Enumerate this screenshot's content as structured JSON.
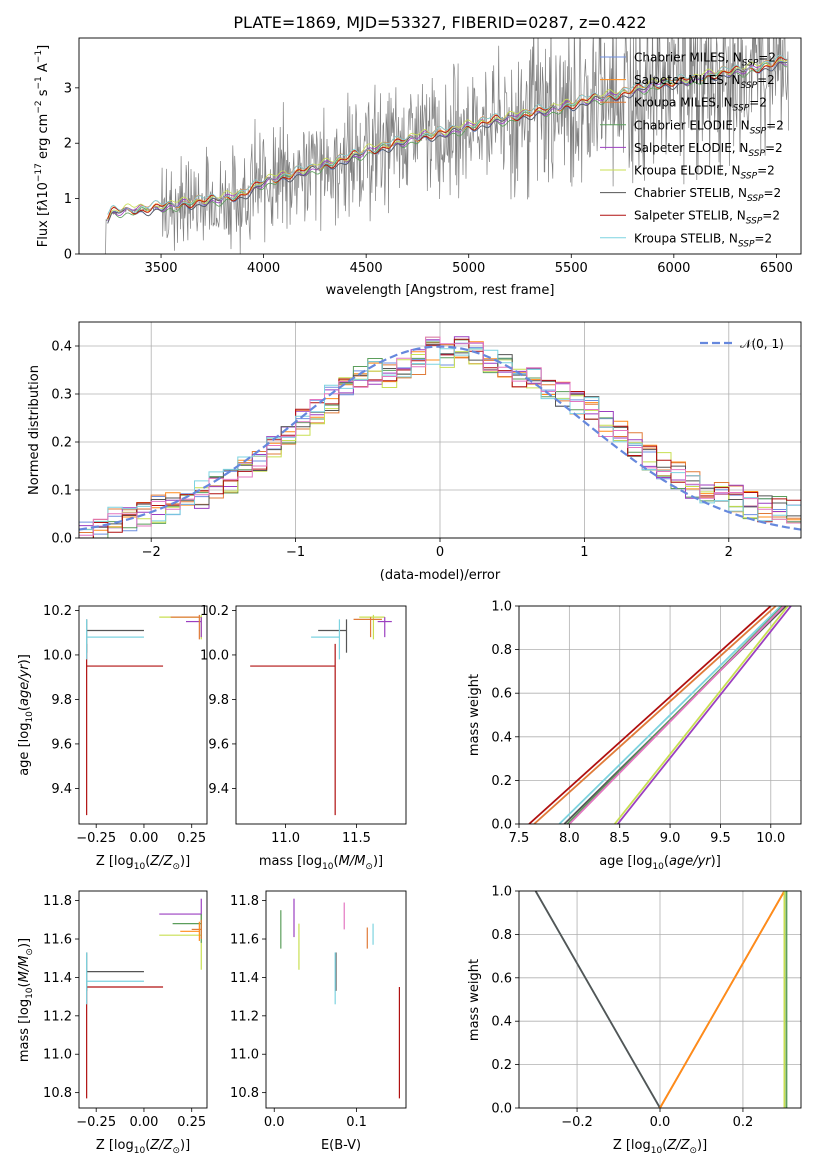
{
  "colors": {
    "chabrier_miles": "#6f8fe0",
    "salpeter_miles": "#ff8c1a",
    "kroupa_miles": "#e07b39",
    "chabrier_elodie": "#5b9e5b",
    "salpeter_elodie": "#9b3fc0",
    "kroupa_elodie": "#c8df52",
    "chabrier_stelib": "#555555",
    "salpeter_stelib": "#b01010",
    "kroupa_stelib": "#7dd3e0",
    "pink": "#e377c2",
    "data": "#808080",
    "gauss": "#6688dd"
  },
  "chart_data": [
    {
      "id": "spectrum",
      "type": "line",
      "title": "PLATE=1869, MJD=53327, FIBERID=0287, z=0.422",
      "xlabel": "wavelength [Angstrom, rest frame]",
      "ylabel_parts": [
        "Flux [f",
        "λ",
        "10",
        "−17",
        " erg cm",
        "−2",
        " s",
        "−1",
        " A",
        "−1",
        "]"
      ],
      "xlim": [
        3100,
        6620
      ],
      "ylim": [
        0,
        3.9
      ],
      "xticks": [
        3500,
        4000,
        4500,
        5000,
        5500,
        6000,
        6500
      ],
      "yticks": [
        0,
        1,
        2,
        3
      ],
      "model_trend": {
        "x": [
          3220,
          3260,
          3300,
          3400,
          3500,
          3600,
          3700,
          3800,
          3900,
          4000,
          4100,
          4200,
          4300,
          4400,
          4500,
          4600,
          4700,
          4800,
          4900,
          5000,
          5100,
          5200,
          5300,
          5400,
          5500,
          5600,
          5700,
          5800,
          5900,
          6000,
          6100,
          6200,
          6300,
          6400,
          6500,
          6550
        ],
        "y": [
          0.55,
          0.75,
          0.78,
          0.8,
          0.85,
          0.9,
          0.95,
          1.0,
          1.08,
          1.3,
          1.4,
          1.5,
          1.6,
          1.72,
          1.85,
          1.95,
          2.05,
          2.15,
          2.2,
          2.3,
          2.4,
          2.45,
          2.55,
          2.6,
          2.7,
          2.8,
          2.85,
          2.95,
          3.05,
          3.1,
          3.15,
          3.25,
          3.3,
          3.35,
          3.45,
          3.5
        ]
      },
      "legend": [
        {
          "name": "Chabrier MILES, N",
          "sub": "SSP",
          "suffix": "=2",
          "color": "chabrier_miles"
        },
        {
          "name": "Salpeter MILES, N",
          "sub": "SSP",
          "suffix": "=2",
          "color": "salpeter_miles"
        },
        {
          "name": "Kroupa MILES, N",
          "sub": "SSP",
          "suffix": "=2",
          "color": "kroupa_miles"
        },
        {
          "name": "Chabrier ELODIE, N",
          "sub": "SSP",
          "suffix": "=2",
          "color": "chabrier_elodie"
        },
        {
          "name": "Salpeter ELODIE, N",
          "sub": "SSP",
          "suffix": "=2",
          "color": "salpeter_elodie"
        },
        {
          "name": "Kroupa ELODIE, N",
          "sub": "SSP",
          "suffix": "=2",
          "color": "kroupa_elodie"
        },
        {
          "name": "Chabrier STELIB, N",
          "sub": "SSP",
          "suffix": "=2",
          "color": "chabrier_stelib"
        },
        {
          "name": "Salpeter STELIB, N",
          "sub": "SSP",
          "suffix": "=2",
          "color": "salpeter_stelib"
        },
        {
          "name": "Kroupa STELIB, N",
          "sub": "SSP",
          "suffix": "=2",
          "color": "kroupa_stelib"
        }
      ]
    },
    {
      "id": "residuals",
      "type": "histogram",
      "xlabel": "(data-model)/error",
      "ylabel": "Normed distribution",
      "xlim": [
        -2.5,
        2.5
      ],
      "ylim": [
        0,
        0.45
      ],
      "xticks": [
        -2,
        -1,
        0,
        1,
        2
      ],
      "xticklabels": [
        "−2",
        "−1",
        "0",
        "1",
        "2"
      ],
      "yticks": [
        0.0,
        0.1,
        0.2,
        0.3,
        0.4
      ],
      "yticklabels": [
        "0.0",
        "0.1",
        "0.2",
        "0.3",
        "0.4"
      ],
      "grid": true,
      "bin_centers": [
        -2.45,
        -2.35,
        -2.25,
        -2.15,
        -2.05,
        -1.95,
        -1.85,
        -1.75,
        -1.65,
        -1.55,
        -1.45,
        -1.35,
        -1.25,
        -1.15,
        -1.05,
        -0.95,
        -0.85,
        -0.75,
        -0.65,
        -0.55,
        -0.45,
        -0.35,
        -0.25,
        -0.15,
        -0.05,
        0.05,
        0.15,
        0.25,
        0.35,
        0.45,
        0.55,
        0.65,
        0.75,
        0.85,
        0.95,
        1.05,
        1.15,
        1.25,
        1.35,
        1.45,
        1.55,
        1.65,
        1.75,
        1.85,
        1.95,
        2.05,
        2.15,
        2.25,
        2.35,
        2.45
      ],
      "hist_base": [
        0.01,
        0.02,
        0.04,
        0.04,
        0.05,
        0.06,
        0.07,
        0.08,
        0.09,
        0.11,
        0.12,
        0.14,
        0.16,
        0.19,
        0.21,
        0.24,
        0.26,
        0.29,
        0.31,
        0.33,
        0.35,
        0.34,
        0.36,
        0.37,
        0.39,
        0.38,
        0.4,
        0.39,
        0.37,
        0.36,
        0.34,
        0.33,
        0.32,
        0.3,
        0.28,
        0.27,
        0.24,
        0.22,
        0.19,
        0.17,
        0.15,
        0.13,
        0.11,
        0.1,
        0.09,
        0.08,
        0.07,
        0.06,
        0.06,
        0.05
      ],
      "reference": {
        "label": "𝒩(0, 1)",
        "mu": 0,
        "sigma": 1,
        "color": "gauss"
      }
    },
    {
      "id": "age_vs_Z",
      "type": "errorbar",
      "xlabel_parts": [
        "Z [log",
        "10",
        "(",
        "Z/Z",
        "⊙",
        ")]"
      ],
      "ylabel_parts": [
        "age  [log",
        "10",
        "(",
        "age/yr",
        ")]"
      ],
      "xlim": [
        -0.34,
        0.33
      ],
      "ylim": [
        9.24,
        10.22
      ],
      "xticks": [
        -0.25,
        0.0,
        0.25
      ],
      "xticklabels": [
        "−0.25",
        "0.00",
        "0.25"
      ],
      "yticks": [
        9.4,
        9.6,
        9.8,
        10.0,
        10.2
      ],
      "yticklabels": [
        "9.4",
        "9.6",
        "9.8",
        "10.0",
        "10.2"
      ],
      "points": [
        {
          "x": -0.3,
          "y": 9.95,
          "xerr": [
            0,
            0.4
          ],
          "yerr": [
            0.67,
            0.1
          ],
          "color": "salpeter_stelib"
        },
        {
          "x": -0.3,
          "y": 10.11,
          "xerr": [
            0,
            0.3
          ],
          "yerr": [
            0.1,
            0.05
          ],
          "color": "chabrier_stelib"
        },
        {
          "x": -0.3,
          "y": 10.08,
          "xerr": [
            0,
            0.3
          ],
          "yerr": [
            0.1,
            0.08
          ],
          "color": "kroupa_stelib"
        },
        {
          "x": 0.3,
          "y": 10.17,
          "xerr": [
            0.22,
            0
          ],
          "yerr": [
            0.1,
            0.01
          ],
          "color": "kroupa_elodie"
        },
        {
          "x": 0.3,
          "y": 10.15,
          "xerr": [
            0.08,
            0
          ],
          "yerr": [
            0.07,
            0.02
          ],
          "color": "salpeter_elodie"
        },
        {
          "x": 0.29,
          "y": 10.17,
          "xerr": [
            0.15,
            0
          ],
          "yerr": [
            0.1,
            0.01
          ],
          "color": "kroupa_miles"
        }
      ]
    },
    {
      "id": "age_vs_mass",
      "type": "errorbar",
      "xlabel_parts": [
        "mass [log",
        "10",
        "(",
        "M/M",
        "⊙",
        ")]"
      ],
      "ylabel_parts": [],
      "xlim": [
        10.65,
        11.85
      ],
      "ylim": [
        9.24,
        10.22
      ],
      "xticks": [
        11.0,
        11.5
      ],
      "xticklabels": [
        "11.0",
        "11.5"
      ],
      "yticks": [
        9.4,
        9.6,
        9.8,
        10.0,
        10.2
      ],
      "yticklabels": [
        "9.4",
        "9.6",
        "9.8",
        "10.0",
        "10.2"
      ],
      "points": [
        {
          "x": 11.35,
          "y": 9.95,
          "xerr": [
            0.6,
            0
          ],
          "yerr": [
            0.67,
            0.1
          ],
          "color": "salpeter_stelib"
        },
        {
          "x": 11.43,
          "y": 10.11,
          "xerr": [
            0.2,
            0
          ],
          "yerr": [
            0.1,
            0.05
          ],
          "color": "chabrier_stelib"
        },
        {
          "x": 11.38,
          "y": 10.08,
          "xerr": [
            0.2,
            0
          ],
          "yerr": [
            0.1,
            0.08
          ],
          "color": "kroupa_stelib"
        },
        {
          "x": 11.62,
          "y": 10.17,
          "xerr": [
            0.1,
            0.08
          ],
          "yerr": [
            0.1,
            0.01
          ],
          "color": "kroupa_elodie"
        },
        {
          "x": 11.7,
          "y": 10.15,
          "xerr": [
            0.05,
            0.05
          ],
          "yerr": [
            0.07,
            0.02
          ],
          "color": "salpeter_elodie"
        },
        {
          "x": 11.6,
          "y": 10.16,
          "xerr": [
            0.12,
            0.08
          ],
          "yerr": [
            0.08,
            0.01
          ],
          "color": "kroupa_miles"
        }
      ]
    },
    {
      "id": "weight_vs_age",
      "type": "line",
      "xlabel_parts": [
        "age  [log",
        "10",
        "(",
        "age/yr",
        ")]"
      ],
      "ylabel": "mass weight",
      "xlim": [
        7.5,
        10.3
      ],
      "ylim": [
        0,
        1
      ],
      "xticks": [
        7.5,
        8.0,
        8.5,
        9.0,
        9.5,
        10.0
      ],
      "xticklabels": [
        "7.5",
        "8.0",
        "8.5",
        "9.0",
        "9.5",
        "10.0"
      ],
      "yticks": [
        0,
        0.2,
        0.4,
        0.6,
        0.8,
        1.0
      ],
      "yticklabels": [
        "0.0",
        "0.2",
        "0.4",
        "0.6",
        "0.8",
        "1.0"
      ],
      "grid": true,
      "lines": [
        {
          "x": [
            7.6,
            10.0
          ],
          "color": "salpeter_stelib"
        },
        {
          "x": [
            7.65,
            10.05
          ],
          "color": "kroupa_miles"
        },
        {
          "x": [
            7.95,
            10.15
          ],
          "color": "chabrier_stelib"
        },
        {
          "x": [
            7.9,
            10.1
          ],
          "color": "kroupa_stelib"
        },
        {
          "x": [
            7.98,
            10.12
          ],
          "color": "chabrier_elodie"
        },
        {
          "x": [
            8.0,
            10.13
          ],
          "color": "pink"
        },
        {
          "x": [
            8.45,
            10.17
          ],
          "color": "kroupa_elodie"
        },
        {
          "x": [
            8.48,
            10.2
          ],
          "color": "salpeter_elodie"
        }
      ]
    },
    {
      "id": "mass_vs_Z",
      "type": "errorbar",
      "xlabel_parts": [
        "Z [log",
        "10",
        "(",
        "Z/Z",
        "⊙",
        ")]"
      ],
      "ylabel_parts": [
        "mass [log",
        "10",
        "(",
        "M/M",
        "⊙",
        ")]"
      ],
      "xlim": [
        -0.34,
        0.33
      ],
      "ylim": [
        10.72,
        11.85
      ],
      "xticks": [
        -0.25,
        0.0,
        0.25
      ],
      "xticklabels": [
        "−0.25",
        "0.00",
        "0.25"
      ],
      "yticks": [
        10.8,
        11.0,
        11.2,
        11.4,
        11.6,
        11.8
      ],
      "yticklabels": [
        "10.8",
        "11.0",
        "11.2",
        "11.4",
        "11.6",
        "11.8"
      ],
      "points": [
        {
          "x": -0.3,
          "y": 11.35,
          "xerr": [
            0,
            0.4
          ],
          "yerr": [
            0.58,
            0
          ],
          "color": "salpeter_stelib"
        },
        {
          "x": -0.3,
          "y": 11.43,
          "xerr": [
            0,
            0.3
          ],
          "yerr": [
            0.1,
            0.1
          ],
          "color": "chabrier_stelib"
        },
        {
          "x": -0.3,
          "y": 11.38,
          "xerr": [
            0,
            0.3
          ],
          "yerr": [
            0.12,
            0.15
          ],
          "color": "kroupa_stelib"
        },
        {
          "x": 0.3,
          "y": 11.73,
          "xerr": [
            0.22,
            0
          ],
          "yerr": [
            0.1,
            0.08
          ],
          "color": "salpeter_elodie"
        },
        {
          "x": 0.3,
          "y": 11.62,
          "xerr": [
            0.22,
            0
          ],
          "yerr": [
            0.18,
            0.1
          ],
          "color": "kroupa_elodie"
        },
        {
          "x": 0.3,
          "y": 11.68,
          "xerr": [
            0.15,
            0
          ],
          "yerr": [
            0.1,
            0.05
          ],
          "color": "chabrier_elodie"
        },
        {
          "x": 0.3,
          "y": 11.65,
          "xerr": [
            0.05,
            0
          ],
          "yerr": [
            0.05,
            0.05
          ],
          "color": "kroupa_miles"
        },
        {
          "x": 0.29,
          "y": 11.64,
          "xerr": [
            0.1,
            0
          ],
          "yerr": [
            0.05,
            0.05
          ],
          "color": "salpeter_miles"
        }
      ]
    },
    {
      "id": "mass_vs_ebv",
      "type": "errorbar",
      "xlabel": "E(B-V)",
      "xlim": [
        -0.01,
        0.16
      ],
      "ylim": [
        10.72,
        11.85
      ],
      "xticks": [
        0.0,
        0.1
      ],
      "xticklabels": [
        "0.0",
        "0.1"
      ],
      "yticks": [
        10.8,
        11.0,
        11.2,
        11.4,
        11.6,
        11.8
      ],
      "yticklabels": [
        "10.8",
        "11.0",
        "11.2",
        "11.4",
        "11.6",
        "11.8"
      ],
      "points": [
        {
          "x": 0.152,
          "y": 11.35,
          "yerr": [
            0.58,
            0
          ],
          "color": "salpeter_stelib"
        },
        {
          "x": 0.075,
          "y": 11.43,
          "yerr": [
            0.1,
            0.1
          ],
          "color": "chabrier_stelib"
        },
        {
          "x": 0.074,
          "y": 11.38,
          "yerr": [
            0.12,
            0.15
          ],
          "color": "kroupa_stelib"
        },
        {
          "x": 0.008,
          "y": 11.65,
          "yerr": [
            0.1,
            0.1
          ],
          "color": "chabrier_elodie"
        },
        {
          "x": 0.024,
          "y": 11.73,
          "yerr": [
            0.12,
            0.08
          ],
          "color": "salpeter_elodie"
        },
        {
          "x": 0.03,
          "y": 11.58,
          "yerr": [
            0.14,
            0.1
          ],
          "color": "kroupa_elodie"
        },
        {
          "x": 0.085,
          "y": 11.72,
          "yerr": [
            0.07,
            0.07
          ],
          "color": "pink"
        },
        {
          "x": 0.113,
          "y": 11.6,
          "yerr": [
            0.05,
            0.06
          ],
          "color": "kroupa_miles"
        },
        {
          "x": 0.12,
          "y": 11.62,
          "yerr": [
            0.05,
            0.06
          ],
          "color": "kroupa_stelib"
        }
      ]
    },
    {
      "id": "weight_vs_Z",
      "type": "line",
      "xlabel_parts": [
        "Z [log",
        "10",
        "(",
        "Z/Z",
        "⊙",
        ")]"
      ],
      "ylabel": "mass weight",
      "xlim": [
        -0.34,
        0.34
      ],
      "ylim": [
        0,
        1
      ],
      "xticks": [
        -0.2,
        0.0,
        0.2
      ],
      "xticklabels": [
        "−0.2",
        "0.0",
        "0.2"
      ],
      "yticks": [
        0,
        0.2,
        0.4,
        0.6,
        0.8,
        1.0
      ],
      "yticklabels": [
        "0.0",
        "0.2",
        "0.4",
        "0.6",
        "0.8",
        "1.0"
      ],
      "grid": true,
      "lines": [
        {
          "x": [
            -0.3,
            0.0
          ],
          "y": [
            1,
            0
          ],
          "color": "kroupa_stelib"
        },
        {
          "x": [
            -0.3,
            0.0
          ],
          "y": [
            1,
            0
          ],
          "color": "chabrier_stelib"
        },
        {
          "x": [
            0.0,
            0.3
          ],
          "y": [
            0,
            1
          ],
          "color": "kroupa_miles"
        },
        {
          "x": [
            0.0,
            0.3
          ],
          "y": [
            0,
            1
          ],
          "color": "salpeter_miles"
        },
        {
          "x": [
            0.3,
            0.3
          ],
          "y": [
            0,
            1
          ],
          "color": "kroupa_elodie"
        },
        {
          "x": [
            0.305,
            0.305
          ],
          "y": [
            0,
            1
          ],
          "color": "chabrier_elodie"
        }
      ]
    }
  ]
}
